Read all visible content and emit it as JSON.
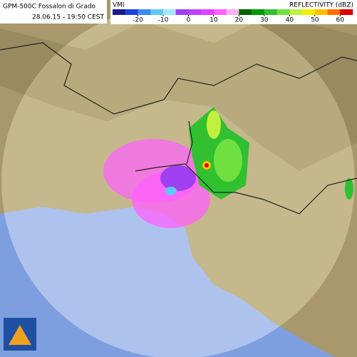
{
  "header": {
    "station": "GPM-500C Fossalon di Grado",
    "time": "28.06.15 - 19:50 CEST"
  },
  "legend": {
    "product": "VMI",
    "title": "REFLECTIVITY (dBZ)",
    "lim": [
      -30,
      65
    ],
    "ticks": [
      -20,
      -10,
      0,
      10,
      20,
      30,
      40,
      50,
      60
    ],
    "colors": [
      "#1a1a8c",
      "#2040e0",
      "#3a8cf0",
      "#5ec8f8",
      "#a0e8ff",
      "#a040f0",
      "#c040ff",
      "#e040ff",
      "#ff60ff",
      "#ffb0f0",
      "#006400",
      "#009a00",
      "#30c030",
      "#70e040",
      "#c0f040",
      "#f0f000",
      "#ffc000",
      "#ff7000",
      "#e00000"
    ]
  }
}
